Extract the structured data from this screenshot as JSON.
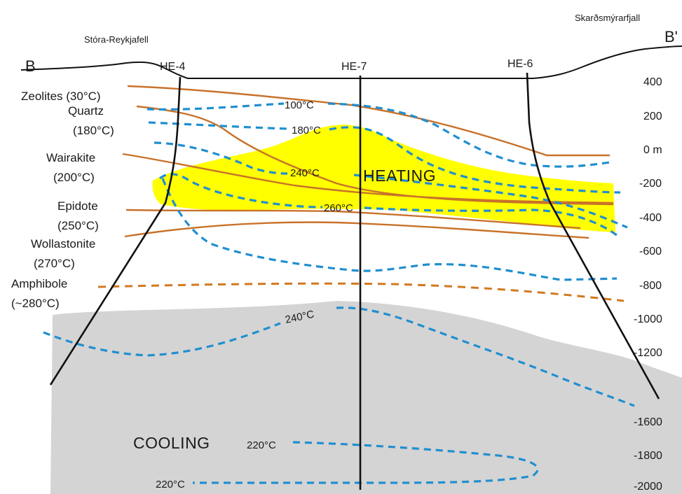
{
  "section": {
    "start_label": "B",
    "end_label": "B'",
    "peak_left": "Stóra-Reykjafell",
    "peak_right": "Skarðsmýrarfjall"
  },
  "wells": [
    "HE-4",
    "HE-7",
    "HE-6"
  ],
  "depth_axis": {
    "unit_label": "0 m",
    "ticks": [
      "400",
      "200",
      "0 m",
      "-200",
      "-400",
      "-600",
      "-800",
      "-1000",
      "-1200",
      "-1600",
      "-1800",
      "-2000"
    ]
  },
  "minerals": [
    {
      "name": "Zeolites (30°C)",
      "line1": "Zeolites (30°C)",
      "line2": ""
    },
    {
      "name": "Quartz",
      "line1": "Quartz",
      "line2": "(180°C)"
    },
    {
      "name": "Wairakite",
      "line1": "Wairakite",
      "line2": "(200°C)"
    },
    {
      "name": "Epidote",
      "line1": "Epidote",
      "line2": "(250°C)"
    },
    {
      "name": "Wollastonite",
      "line1": "Wollastonite",
      "line2": "(270°C)"
    },
    {
      "name": "Amphibole",
      "line1": "Amphibole",
      "line2": "(~280°C)"
    }
  ],
  "isotherms": {
    "t100": "100°C",
    "t180": "180°C",
    "t240_upper": "240°C",
    "t260": "260°C",
    "t240_lower": "240°C",
    "t220_a": "220°C",
    "t220_b": "220°C"
  },
  "zones": {
    "heating": "HEATING",
    "cooling": "COOLING"
  },
  "colors": {
    "isotherm": "#1f8fd0",
    "mineral": "#c8722a",
    "heating_zone": "#ffff00",
    "cooling_zone": "#d3d3d3",
    "well": "#111111"
  }
}
